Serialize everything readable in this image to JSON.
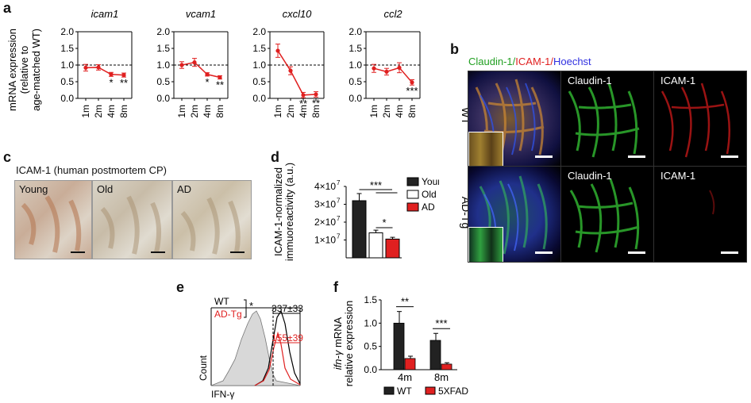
{
  "panel_letters": {
    "a": "a",
    "b": "b",
    "c": "c",
    "d": "d",
    "e": "e",
    "f": "f"
  },
  "panel_a": {
    "ylabel": [
      "mRNA expression",
      "(relative to",
      "age-matched WT)"
    ],
    "genes": [
      "icam1",
      "vcam1",
      "cxcl10",
      "ccl2"
    ],
    "timepoints": [
      "1m",
      "2m",
      "4m",
      "8m"
    ],
    "yticks": [
      "0.0",
      "0.5",
      "1.0",
      "1.5",
      "2.0"
    ]
  },
  "chart_data": [
    {
      "type": "line",
      "panel": "a",
      "ylabel": "mRNA expression (relative to age-matched WT)",
      "ylim": [
        0,
        2.0
      ],
      "categories": [
        "1m",
        "2m",
        "4m",
        "8m"
      ],
      "reference_line": 1.0,
      "color": "#e02020",
      "series": [
        {
          "name": "icam1",
          "values": [
            0.92,
            0.93,
            0.72,
            0.7
          ],
          "errors": [
            0.1,
            0.08,
            0.06,
            0.06
          ],
          "sig": [
            "",
            "",
            "*",
            "**"
          ]
        },
        {
          "name": "vcam1",
          "values": [
            1.0,
            1.08,
            0.72,
            0.63
          ],
          "errors": [
            0.1,
            0.12,
            0.05,
            0.05
          ],
          "sig": [
            "",
            "",
            "*",
            "**"
          ]
        },
        {
          "name": "cxcl10",
          "values": [
            1.43,
            0.83,
            0.1,
            0.12
          ],
          "errors": [
            0.2,
            0.12,
            0.08,
            0.08
          ],
          "sig": [
            "",
            "",
            "**",
            "**"
          ]
        },
        {
          "name": "ccl2",
          "values": [
            0.9,
            0.8,
            0.92,
            0.48
          ],
          "errors": [
            0.12,
            0.1,
            0.15,
            0.08
          ],
          "sig": [
            "",
            "",
            "",
            "***"
          ]
        }
      ]
    },
    {
      "type": "bar",
      "panel": "d",
      "ylabel": "ICAM-1-normalized immuoreactivity (a.u.)",
      "categories": [
        "Young",
        "Old",
        "AD"
      ],
      "values": [
        32000000,
        14000000,
        10500000
      ],
      "errors": [
        4000000,
        1500000,
        1000000
      ],
      "ylim": [
        0,
        40000000
      ],
      "yticks": [
        "1×10",
        "2×10",
        "3×10",
        "4×10"
      ],
      "ytick_exp": "7",
      "colors": [
        "#222222",
        "#ffffff",
        "#e02020"
      ],
      "sig": [
        "***",
        "*"
      ]
    },
    {
      "type": "area",
      "panel": "e",
      "xlabel": "IFN-γ",
      "ylabel": "Count",
      "legend": [
        "WT",
        "AD-Tg"
      ],
      "sig": "*",
      "annotations": [
        "337±33",
        "155±39"
      ]
    },
    {
      "type": "bar",
      "panel": "f",
      "ylabel": "ifn-γ mRNA relative expression",
      "categories": [
        "4m",
        "8m"
      ],
      "series": [
        {
          "name": "WT",
          "values": [
            1.0,
            0.63
          ],
          "errors": [
            0.25,
            0.15
          ],
          "color": "#222222"
        },
        {
          "name": "5XFAD",
          "values": [
            0.24,
            0.12
          ],
          "errors": [
            0.05,
            0.03
          ],
          "color": "#e02020"
        }
      ],
      "ylim": [
        0,
        1.5
      ],
      "yticks": [
        "0.0",
        "0.5",
        "1.0",
        "1.5"
      ],
      "sig": [
        "**",
        "***"
      ]
    }
  ],
  "panel_b": {
    "title_parts": [
      {
        "text": "Claudin-1",
        "color": "#22a022"
      },
      {
        "text": "/",
        "color": "#22a022"
      },
      {
        "text": "ICAM-1",
        "color": "#e02020"
      },
      {
        "text": "/",
        "color": "#e02020"
      },
      {
        "text": "Hoechst",
        "color": "#3030e0"
      }
    ],
    "rows": [
      "WT",
      "AD-Tg"
    ],
    "channel_labels": [
      "Claudin-1",
      "ICAM-1"
    ]
  },
  "panel_c": {
    "title": "ICAM-1 (human postmortem CP)",
    "images": [
      "Young",
      "Old",
      "AD"
    ]
  },
  "panel_d": {
    "ylabel": [
      "ICAM-1-normalized",
      "immuoreactivity (a.u.)"
    ],
    "legend": [
      "Young",
      "Old",
      "AD"
    ]
  },
  "panel_e": {
    "legend_wt": "WT",
    "legend_ad": "AD-Tg",
    "sig": "*",
    "wt_value": "337±33",
    "ad_value": "155±39",
    "xlabel": "IFN-γ",
    "ylabel": "Count"
  },
  "panel_f": {
    "ylabel_italic": "ifn-γ",
    "ylabel_rest": " mRNA",
    "ylabel2": "relative expression",
    "legend": [
      "WT",
      "5XFAD"
    ]
  }
}
